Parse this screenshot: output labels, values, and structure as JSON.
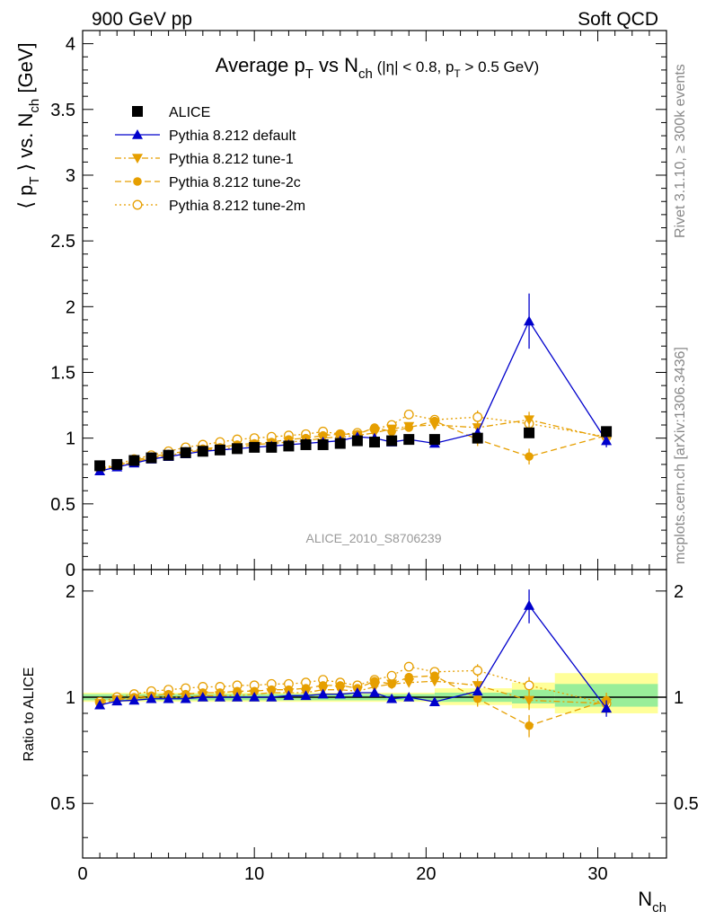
{
  "header": {
    "left": "900 GeV pp",
    "right": "Soft QCD"
  },
  "side_text": {
    "rivet": "Rivet 3.1.10, ≥ 300k events",
    "ref": "mcplots.cern.ch [arXiv:1306.3436]"
  },
  "watermark": "ALICE_2010_S8706239",
  "chart_data": [
    {
      "type": "scatter",
      "title": "Average p_T vs N_ch (|η| < 0.8, p_T > 0.5 GeV)",
      "title_parts": {
        "a": "Average p",
        "a_sub": "T",
        "b": " vs N",
        "b_sub": "ch",
        "c": " (|η| < 0.8, p",
        "c_sub": "T",
        "d": " > 0.5 GeV)"
      },
      "ylabel_parts": {
        "a": "⟨ p",
        "a_sub": "T",
        "b": " ⟩ vs. N",
        "b_sub": "ch",
        "c": " [GeV]"
      },
      "xlim": [
        0,
        34
      ],
      "ylim": [
        0,
        4.1
      ],
      "yticks": [
        0,
        0.5,
        1,
        1.5,
        2,
        2.5,
        3,
        3.5,
        4
      ],
      "yticklabels": [
        "0",
        "0.5",
        "1",
        "1.5",
        "2",
        "2.5",
        "3",
        "3.5",
        "4"
      ],
      "legend_position": "top-left",
      "series": [
        {
          "name": "ALICE",
          "color": "#000000",
          "marker": "square",
          "line": "none",
          "x": [
            1,
            2,
            3,
            4,
            5,
            6,
            7,
            8,
            9,
            10,
            11,
            12,
            13,
            14,
            15,
            16,
            17,
            18,
            19,
            20.5,
            23,
            26,
            30.5
          ],
          "y": [
            0.79,
            0.8,
            0.83,
            0.85,
            0.87,
            0.89,
            0.9,
            0.91,
            0.92,
            0.93,
            0.93,
            0.94,
            0.95,
            0.95,
            0.96,
            0.98,
            0.97,
            0.98,
            0.99,
            0.99,
            1.0,
            1.04,
            1.05
          ]
        },
        {
          "name": "Pythia 8.212 default",
          "color": "#0000cc",
          "marker": "triangle-up",
          "line": "solid",
          "x": [
            1,
            2,
            3,
            4,
            5,
            6,
            7,
            8,
            9,
            10,
            11,
            12,
            13,
            14,
            15,
            16,
            17,
            18,
            19,
            20.5,
            23,
            26,
            30.5
          ],
          "y": [
            0.75,
            0.78,
            0.81,
            0.84,
            0.86,
            0.88,
            0.9,
            0.91,
            0.92,
            0.93,
            0.94,
            0.95,
            0.96,
            0.97,
            0.98,
            1.01,
            1.0,
            0.97,
            0.99,
            0.96,
            1.04,
            1.89,
            0.98
          ],
          "err": [
            0,
            0,
            0,
            0,
            0,
            0,
            0,
            0,
            0,
            0,
            0,
            0,
            0,
            0,
            0,
            0,
            0,
            0,
            0,
            0,
            0,
            0.21,
            0.05
          ]
        },
        {
          "name": "Pythia 8.212 tune-1",
          "color": "#e69f00",
          "marker": "triangle-down",
          "line": "dash-dot",
          "x": [
            1,
            2,
            3,
            4,
            5,
            6,
            7,
            8,
            9,
            10,
            11,
            12,
            13,
            14,
            15,
            16,
            17,
            18,
            19,
            20.5,
            23,
            26,
            30.5
          ],
          "y": [
            0.76,
            0.79,
            0.82,
            0.85,
            0.87,
            0.89,
            0.91,
            0.92,
            0.93,
            0.95,
            0.96,
            0.97,
            0.98,
            1.0,
            1.01,
            1.02,
            1.04,
            1.07,
            1.09,
            1.1,
            1.08,
            1.14,
            1.0
          ],
          "err": [
            0,
            0,
            0,
            0,
            0,
            0,
            0,
            0,
            0,
            0,
            0,
            0,
            0,
            0,
            0,
            0,
            0,
            0.03,
            0.03,
            0.03,
            0.05,
            0.06,
            0.05
          ]
        },
        {
          "name": "Pythia 8.212 tune-2c",
          "color": "#e69f00",
          "marker": "circle",
          "line": "dashed",
          "x": [
            1,
            2,
            3,
            4,
            5,
            6,
            7,
            8,
            9,
            10,
            11,
            12,
            13,
            14,
            15,
            16,
            17,
            18,
            19,
            20.5,
            23,
            26,
            30.5
          ],
          "y": [
            0.76,
            0.79,
            0.83,
            0.86,
            0.88,
            0.9,
            0.92,
            0.93,
            0.95,
            0.96,
            0.97,
            0.99,
            1.0,
            1.02,
            1.03,
            1.03,
            1.08,
            1.05,
            1.08,
            1.13,
            0.99,
            0.86,
            1.02
          ],
          "err": [
            0,
            0,
            0,
            0,
            0,
            0,
            0,
            0,
            0,
            0,
            0,
            0,
            0,
            0,
            0,
            0,
            0,
            0.03,
            0.03,
            0.03,
            0.05,
            0.06,
            0.05
          ]
        },
        {
          "name": "Pythia 8.212 tune-2m",
          "color": "#e69f00",
          "marker": "circle-open",
          "line": "dotted",
          "x": [
            1,
            2,
            3,
            4,
            5,
            6,
            7,
            8,
            9,
            10,
            11,
            12,
            13,
            14,
            15,
            16,
            17,
            18,
            19,
            20.5,
            23,
            26,
            30.5
          ],
          "y": [
            0.77,
            0.8,
            0.84,
            0.87,
            0.9,
            0.93,
            0.95,
            0.97,
            0.99,
            1.0,
            1.01,
            1.02,
            1.03,
            1.05,
            1.03,
            1.04,
            1.07,
            1.1,
            1.18,
            1.14,
            1.16,
            1.11,
            1.01
          ],
          "err": [
            0,
            0,
            0,
            0,
            0,
            0,
            0,
            0,
            0,
            0,
            0,
            0,
            0,
            0,
            0,
            0,
            0,
            0.03,
            0.03,
            0.03,
            0.05,
            0.06,
            0.05
          ]
        }
      ]
    },
    {
      "type": "scatter",
      "ylabel": "Ratio to ALICE",
      "xlabel_parts": {
        "a": "N",
        "a_sub": "ch"
      },
      "xlim": [
        0,
        34
      ],
      "ylim": [
        0.35,
        2.3
      ],
      "xticks": [
        0,
        10,
        20,
        30
      ],
      "xticklabels": [
        "0",
        "10",
        "20",
        "30"
      ],
      "yticks": [
        0.5,
        1,
        2
      ],
      "yticklabels": [
        "0.5",
        "1",
        "2"
      ],
      "bands": [
        {
          "x": [
            0,
            20.5
          ],
          "yellow": [
            0.97,
            1.03
          ],
          "green": [
            0.98,
            1.02
          ]
        },
        {
          "x": [
            20.5,
            25
          ],
          "yellow": [
            0.95,
            1.06
          ],
          "green": [
            0.97,
            1.03
          ]
        },
        {
          "x": [
            25,
            27.5
          ],
          "yellow": [
            0.93,
            1.1
          ],
          "green": [
            0.96,
            1.05
          ]
        },
        {
          "x": [
            27.5,
            33.5
          ],
          "yellow": [
            0.9,
            1.17
          ],
          "green": [
            0.94,
            1.09
          ]
        }
      ],
      "series": [
        {
          "name": "Pythia 8.212 default",
          "color": "#0000cc",
          "marker": "triangle-up",
          "line": "solid",
          "x": [
            1,
            2,
            3,
            4,
            5,
            6,
            7,
            8,
            9,
            10,
            11,
            12,
            13,
            14,
            15,
            16,
            17,
            18,
            19,
            20.5,
            23,
            26,
            30.5
          ],
          "y": [
            0.95,
            0.975,
            0.98,
            0.99,
            0.99,
            0.99,
            1.0,
            1.0,
            1.0,
            1.0,
            1.0,
            1.01,
            1.01,
            1.02,
            1.02,
            1.03,
            1.03,
            0.99,
            1.0,
            0.97,
            1.04,
            1.82,
            0.93
          ],
          "err": [
            0,
            0,
            0,
            0,
            0,
            0,
            0,
            0,
            0,
            0,
            0,
            0,
            0,
            0,
            0,
            0,
            0,
            0,
            0,
            0,
            0,
            0.2,
            0.05
          ]
        },
        {
          "name": "Pythia 8.212 tune-1",
          "color": "#e69f00",
          "marker": "triangle-down",
          "line": "dash-dot",
          "x": [
            1,
            2,
            3,
            4,
            5,
            6,
            7,
            8,
            9,
            10,
            11,
            12,
            13,
            14,
            15,
            16,
            17,
            18,
            19,
            20.5,
            23,
            26,
            30.5
          ],
          "y": [
            0.96,
            0.985,
            0.99,
            1.0,
            1.0,
            1.0,
            1.01,
            1.01,
            1.01,
            1.02,
            1.03,
            1.03,
            1.03,
            1.05,
            1.05,
            1.04,
            1.07,
            1.09,
            1.1,
            1.11,
            1.08,
            0.98,
            0.96
          ],
          "err": [
            0,
            0,
            0,
            0,
            0,
            0,
            0,
            0,
            0,
            0,
            0,
            0,
            0,
            0,
            0,
            0,
            0,
            0.03,
            0.03,
            0.03,
            0.05,
            0.06,
            0.05
          ]
        },
        {
          "name": "Pythia 8.212 tune-2c",
          "color": "#e69f00",
          "marker": "circle",
          "line": "dashed",
          "x": [
            1,
            2,
            3,
            4,
            5,
            6,
            7,
            8,
            9,
            10,
            11,
            12,
            13,
            14,
            15,
            16,
            17,
            18,
            19,
            20.5,
            23,
            26,
            30.5
          ],
          "y": [
            0.96,
            0.985,
            1.0,
            1.01,
            1.02,
            1.02,
            1.03,
            1.03,
            1.04,
            1.04,
            1.05,
            1.05,
            1.06,
            1.08,
            1.08,
            1.06,
            1.11,
            1.09,
            1.14,
            1.15,
            0.99,
            0.83,
            0.98
          ],
          "err": [
            0,
            0,
            0,
            0,
            0,
            0,
            0,
            0,
            0,
            0,
            0,
            0,
            0,
            0,
            0,
            0,
            0,
            0.03,
            0.03,
            0.03,
            0.05,
            0.06,
            0.05
          ]
        },
        {
          "name": "Pythia 8.212 tune-2m",
          "color": "#e69f00",
          "marker": "circle-open",
          "line": "dotted",
          "x": [
            1,
            2,
            3,
            4,
            5,
            6,
            7,
            8,
            9,
            10,
            11,
            12,
            13,
            14,
            15,
            16,
            17,
            18,
            19,
            20.5,
            23,
            26,
            30.5
          ],
          "y": [
            0.97,
            1.0,
            1.02,
            1.04,
            1.05,
            1.06,
            1.07,
            1.07,
            1.08,
            1.08,
            1.09,
            1.09,
            1.1,
            1.12,
            1.1,
            1.08,
            1.12,
            1.15,
            1.22,
            1.18,
            1.19,
            1.08,
            0.96
          ],
          "err": [
            0,
            0,
            0,
            0,
            0,
            0,
            0,
            0,
            0,
            0,
            0,
            0,
            0,
            0,
            0,
            0,
            0,
            0.03,
            0.03,
            0.03,
            0.05,
            0.06,
            0.05
          ]
        }
      ]
    }
  ]
}
